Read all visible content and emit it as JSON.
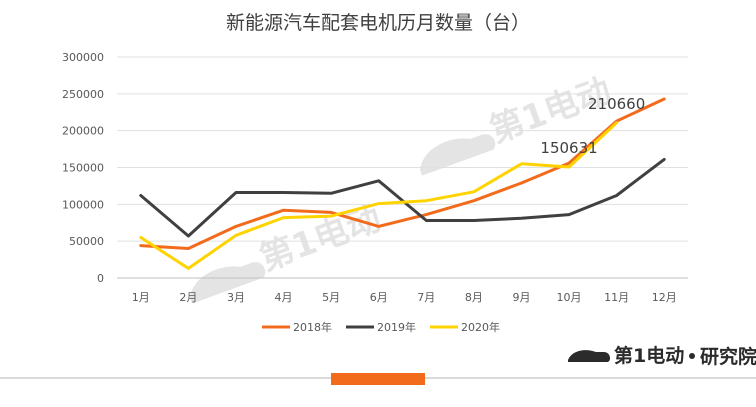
{
  "chart_data": {
    "type": "line",
    "title": "新能源汽车配套电机历月数量（台）",
    "categories": [
      "1月",
      "2月",
      "3月",
      "4月",
      "5月",
      "6月",
      "7月",
      "8月",
      "9月",
      "10月",
      "11月",
      "12月"
    ],
    "ylim": [
      0,
      300000
    ],
    "yticks": [
      "300000",
      "250000",
      "200000",
      "150000",
      "100000",
      "50000",
      "0"
    ],
    "grid": true,
    "legend_position": "bottom",
    "series": [
      {
        "name": "2018年",
        "color": "#F26B1D",
        "values": [
          44000,
          40000,
          70000,
          92000,
          89000,
          70000,
          86000,
          105000,
          129000,
          156000,
          213000,
          243000
        ]
      },
      {
        "name": "2019年",
        "color": "#404040",
        "values": [
          112000,
          57000,
          116000,
          116000,
          115000,
          132000,
          78000,
          78000,
          81000,
          86000,
          112000,
          161000
        ]
      },
      {
        "name": "2020年",
        "color": "#FFD300",
        "values": [
          55000,
          13000,
          58000,
          82000,
          84000,
          101000,
          105000,
          117000,
          155000,
          150631,
          210660,
          null
        ]
      }
    ],
    "data_labels": [
      {
        "text": "150631",
        "series": 2,
        "index": 9
      },
      {
        "text": "210660",
        "series": 2,
        "index": 10
      }
    ]
  },
  "brand": {
    "logo_text": "第1电动",
    "name": "研究院"
  },
  "watermark": {
    "text": "第1电动",
    "url": "www.d1ev.com"
  }
}
